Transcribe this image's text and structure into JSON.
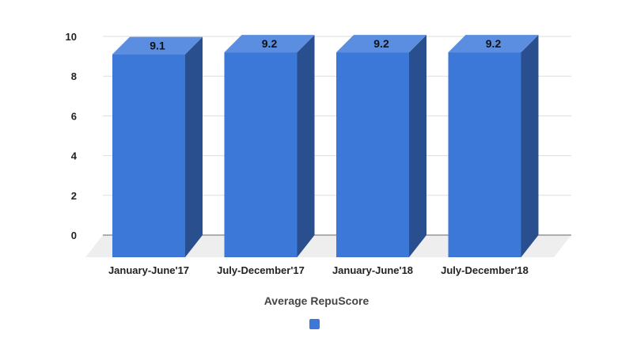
{
  "chart_data": {
    "type": "bar",
    "categories": [
      "January-June'17",
      "July-December'17",
      "January-June'18",
      "July-December'18"
    ],
    "values": [
      9.1,
      9.2,
      9.2,
      9.2
    ],
    "data_labels": [
      "9.1",
      "9.2",
      "9.2",
      "9.2"
    ],
    "xlabel": "Average RepuScore",
    "ylabel": "",
    "ylim": [
      0,
      10
    ],
    "yticks": [
      "0",
      "2",
      "4",
      "6",
      "8",
      "10"
    ],
    "grid": true,
    "legend_position": "bottom",
    "style": "3d",
    "colors": {
      "bar_front": "#3c78d8",
      "bar_top": "#5b8ee0",
      "bar_side": "#2a4f8f",
      "floor": "#eeeeee",
      "grid": "#dddddd"
    }
  },
  "legend": {
    "label": ""
  }
}
